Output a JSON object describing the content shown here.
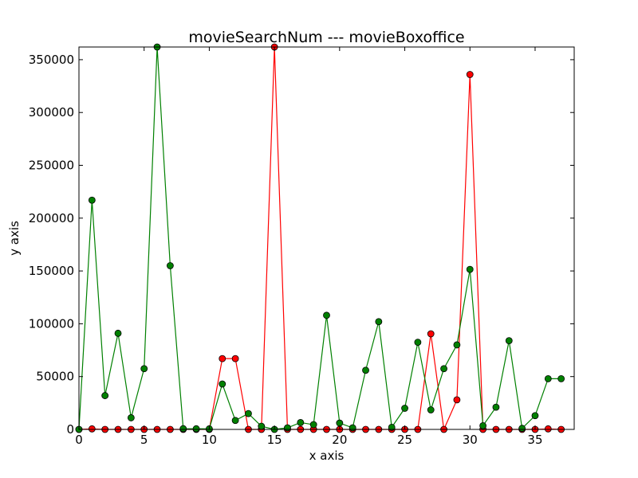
{
  "chart_data": {
    "type": "line",
    "title": "movieSearchNum --- movieBoxoffice",
    "xlabel": "x axis",
    "ylabel": "y axis",
    "xlim": [
      0,
      38
    ],
    "ylim": [
      0,
      362000
    ],
    "xticks": [
      0,
      5,
      10,
      15,
      20,
      25,
      30,
      35
    ],
    "yticks": [
      0,
      50000,
      100000,
      150000,
      200000,
      250000,
      300000,
      350000
    ],
    "grid": false,
    "x": [
      0,
      1,
      2,
      3,
      4,
      5,
      6,
      7,
      8,
      9,
      10,
      11,
      12,
      13,
      14,
      15,
      16,
      17,
      18,
      19,
      20,
      21,
      22,
      23,
      24,
      25,
      26,
      27,
      28,
      29,
      30,
      31,
      32,
      33,
      34,
      35,
      36,
      37
    ],
    "series": [
      {
        "color": "#ff0000",
        "values": [
          0,
          500,
          0,
          0,
          0,
          0,
          0,
          0,
          0,
          0,
          0,
          67000,
          67000,
          0,
          0,
          362000,
          0,
          0,
          0,
          0,
          0,
          0,
          0,
          0,
          0,
          0,
          0,
          90500,
          0,
          28000,
          336000,
          0,
          0,
          0,
          0,
          0,
          500,
          0
        ]
      },
      {
        "color": "#008000",
        "values": [
          0,
          217000,
          32000,
          91000,
          11000,
          57500,
          362000,
          155000,
          700,
          600,
          500,
          43000,
          8500,
          15000,
          3000,
          0,
          1500,
          6500,
          4500,
          108000,
          6000,
          1500,
          56000,
          102000,
          2000,
          20000,
          82500,
          18500,
          57500,
          80000,
          151500,
          3500,
          21000,
          84000,
          1000,
          13000,
          48000,
          48000
        ]
      }
    ]
  }
}
